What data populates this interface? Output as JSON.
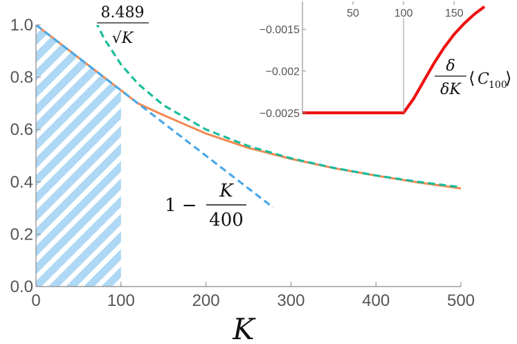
{
  "chart_data": [
    {
      "type": "line",
      "xlabel": "K",
      "xlim": [
        0,
        500
      ],
      "ylim": [
        0,
        1.0
      ],
      "x_ticks": [
        "0",
        "100",
        "200",
        "300",
        "400",
        "500"
      ],
      "y_ticks": [
        "0.0",
        "0.2",
        "0.4",
        "0.6",
        "0.8",
        "1.0"
      ],
      "series": [
        {
          "color": "#f4874f",
          "style": "solid",
          "x": [
            0,
            20,
            40,
            60,
            80,
            100,
            120,
            150,
            200,
            250,
            300,
            350,
            400,
            450,
            500
          ],
          "y": [
            1.0,
            0.95,
            0.9,
            0.85,
            0.8,
            0.75,
            0.7,
            0.655,
            0.585,
            0.53,
            0.488,
            0.453,
            0.424,
            0.398,
            0.375
          ]
        },
        {
          "color": "#1abc9c",
          "style": "dashed",
          "x": [
            70,
            80,
            100,
            120,
            150,
            200,
            250,
            300,
            350,
            400,
            450,
            500
          ],
          "y": [
            1.0146,
            0.9491,
            0.8489,
            0.7749,
            0.6931,
            0.6003,
            0.5369,
            0.4901,
            0.4538,
            0.4245,
            0.4002,
            0.3796
          ]
        },
        {
          "color": "#4aa8e8",
          "style": "dashed",
          "x": [
            0,
            279
          ],
          "y": [
            1.0,
            0.3025
          ]
        }
      ],
      "shaded_region": {
        "x": [
          0,
          100
        ],
        "pattern": "diagonal-stripes",
        "color": "#aed8f4"
      },
      "annotations": [
        {
          "numerator": "8.489",
          "denominator": "√K"
        },
        {
          "prefix": "1 −",
          "numerator": "K",
          "denominator": "400"
        }
      ],
      "grid": false
    },
    {
      "type": "line",
      "xlim": [
        0,
        180
      ],
      "ylim": [
        -0.0025,
        -0.0012
      ],
      "x_ticks": [
        "50",
        "100",
        "150"
      ],
      "y_ticks": [
        "−0.0015",
        "−0.002",
        "−0.0025"
      ],
      "vertical_line_x": 100,
      "series": [
        {
          "color": "#ee1111",
          "style": "solid",
          "x": [
            0,
            100,
            110,
            120,
            130,
            140,
            150,
            160,
            170,
            180
          ],
          "y": [
            -0.0025,
            -0.0025,
            -0.00233,
            -0.00212,
            -0.00191,
            -0.00172,
            -0.00156,
            -0.00143,
            -0.00132,
            -0.00123
          ]
        }
      ],
      "annotation": {
        "numerator": "δ",
        "denominator": "δK",
        "bracket_content": "C",
        "subscript": "100"
      }
    }
  ]
}
